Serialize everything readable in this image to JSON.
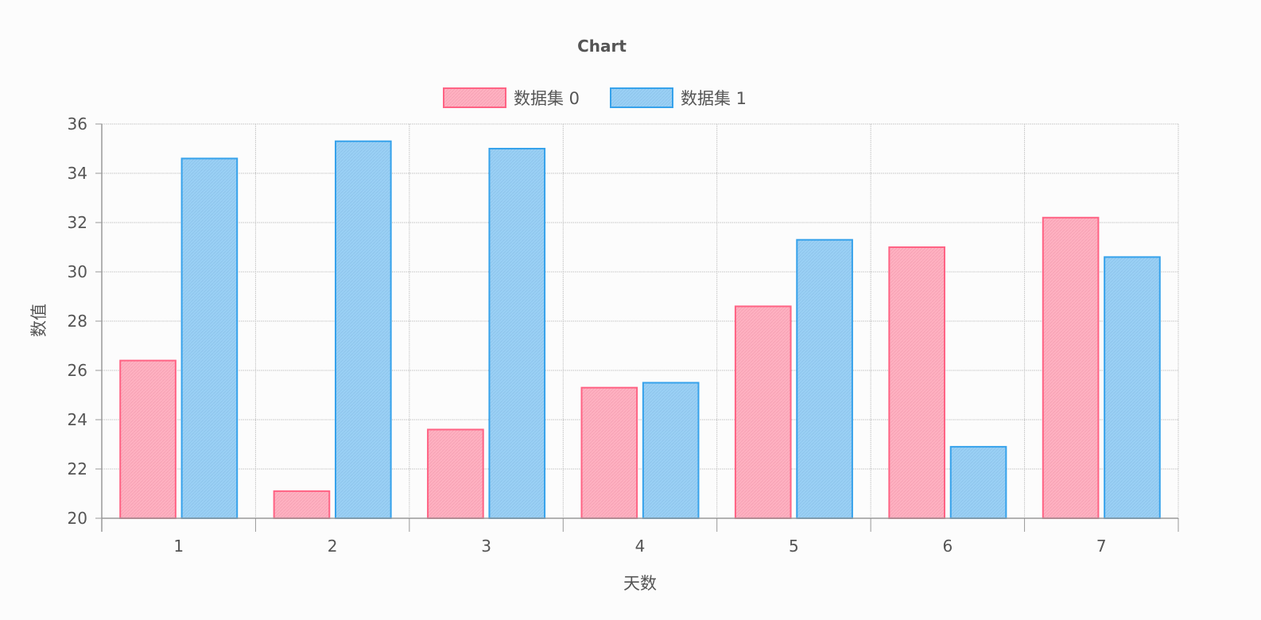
{
  "chart_data": {
    "type": "bar",
    "title": "Chart",
    "xlabel": "天数",
    "ylabel": "数值",
    "categories": [
      "1",
      "2",
      "3",
      "4",
      "5",
      "6",
      "7"
    ],
    "ylim": [
      20,
      36
    ],
    "yticks": [
      20,
      22,
      24,
      26,
      28,
      30,
      32,
      34,
      36
    ],
    "grid": true,
    "legend_position": "top",
    "series": [
      {
        "name": "数据集 0",
        "values": [
          26.4,
          21.1,
          23.6,
          25.3,
          28.6,
          31.0,
          32.2
        ],
        "fill": "#ffb1c1",
        "stroke": "#ff6384"
      },
      {
        "name": "数据集 1",
        "values": [
          34.6,
          35.3,
          35.0,
          25.5,
          31.3,
          22.9,
          30.6
        ],
        "fill": "#9ad0f5",
        "stroke": "#36a2eb"
      }
    ]
  }
}
